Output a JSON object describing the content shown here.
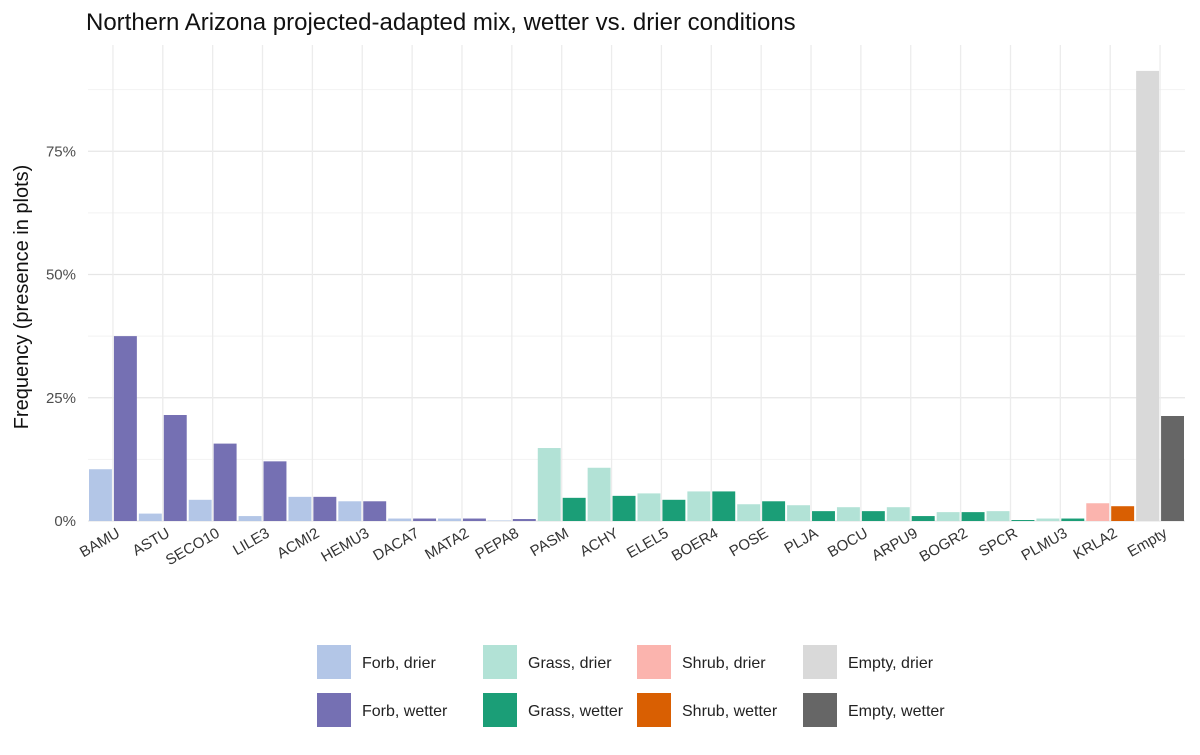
{
  "chart_data": {
    "type": "bar",
    "title": "Northern Arizona projected-adapted mix, wetter vs. drier conditions",
    "xlabel": "",
    "ylabel": "Frequency (presence in plots)",
    "ylim": [
      0,
      0.93
    ],
    "yticks": [
      0,
      0.25,
      0.5,
      0.75
    ],
    "ytick_labels": [
      "0%",
      "25%",
      "50%",
      "75%"
    ],
    "grid": true,
    "legend_position": "bottom",
    "categories": [
      "BAMU",
      "ASTU",
      "SECO10",
      "LILE3",
      "ACMI2",
      "HEMU3",
      "DACA7",
      "MATA2",
      "PEPA8",
      "PASM",
      "ACHY",
      "ELEL5",
      "BOER4",
      "POSE",
      "PLJA",
      "BOCU",
      "ARPU9",
      "BOGR2",
      "SPCR",
      "PLMU3",
      "KRLA2",
      "Empty"
    ],
    "bars": [
      {
        "category": "BAMU",
        "drier": 0.105,
        "wetter": 0.375,
        "group": "Forb"
      },
      {
        "category": "ASTU",
        "drier": 0.015,
        "wetter": 0.215,
        "group": "Forb"
      },
      {
        "category": "SECO10",
        "drier": 0.043,
        "wetter": 0.157,
        "group": "Forb"
      },
      {
        "category": "LILE3",
        "drier": 0.01,
        "wetter": 0.121,
        "group": "Forb"
      },
      {
        "category": "ACMI2",
        "drier": 0.049,
        "wetter": 0.049,
        "group": "Forb"
      },
      {
        "category": "HEMU3",
        "drier": 0.04,
        "wetter": 0.04,
        "group": "Forb"
      },
      {
        "category": "DACA7",
        "drier": 0.005,
        "wetter": 0.005,
        "group": "Forb"
      },
      {
        "category": "MATA2",
        "drier": 0.005,
        "wetter": 0.005,
        "group": "Forb"
      },
      {
        "category": "PEPA8",
        "drier": 0.001,
        "wetter": 0.004,
        "group": "Forb"
      },
      {
        "category": "PASM",
        "drier": 0.148,
        "wetter": 0.047,
        "group": "Grass"
      },
      {
        "category": "ACHY",
        "drier": 0.108,
        "wetter": 0.051,
        "group": "Grass"
      },
      {
        "category": "ELEL5",
        "drier": 0.056,
        "wetter": 0.043,
        "group": "Grass"
      },
      {
        "category": "BOER4",
        "drier": 0.06,
        "wetter": 0.06,
        "group": "Grass"
      },
      {
        "category": "POSE",
        "drier": 0.034,
        "wetter": 0.04,
        "group": "Grass"
      },
      {
        "category": "PLJA",
        "drier": 0.032,
        "wetter": 0.02,
        "group": "Grass"
      },
      {
        "category": "BOCU",
        "drier": 0.028,
        "wetter": 0.02,
        "group": "Grass"
      },
      {
        "category": "ARPU9",
        "drier": 0.028,
        "wetter": 0.01,
        "group": "Grass"
      },
      {
        "category": "BOGR2",
        "drier": 0.018,
        "wetter": 0.018,
        "group": "Grass"
      },
      {
        "category": "SPCR",
        "drier": 0.02,
        "wetter": 0.002,
        "group": "Grass"
      },
      {
        "category": "PLMU3",
        "drier": 0.005,
        "wetter": 0.005,
        "group": "Grass"
      },
      {
        "category": "KRLA2",
        "drier": 0.036,
        "wetter": 0.03,
        "group": "Shrub"
      },
      {
        "category": "Empty",
        "drier": 0.913,
        "wetter": 0.213,
        "group": "Empty"
      }
    ],
    "colors": {
      "Forb": {
        "drier": "#b3c6e7",
        "wetter": "#7570b3"
      },
      "Grass": {
        "drier": "#b2e2d6",
        "wetter": "#1b9e77"
      },
      "Shrub": {
        "drier": "#fbb4ae",
        "wetter": "#d95f02"
      },
      "Empty": {
        "drier": "#d9d9d9",
        "wetter": "#666666"
      }
    },
    "legend": [
      {
        "label": "Forb, drier",
        "color": "#b3c6e7"
      },
      {
        "label": "Grass, drier",
        "color": "#b2e2d6"
      },
      {
        "label": "Shrub, drier",
        "color": "#fbb4ae"
      },
      {
        "label": "Empty, drier",
        "color": "#d9d9d9"
      },
      {
        "label": "Forb, wetter",
        "color": "#7570b3"
      },
      {
        "label": "Grass, wetter",
        "color": "#1b9e77"
      },
      {
        "label": "Shrub, wetter",
        "color": "#d95f02"
      },
      {
        "label": "Empty, wetter",
        "color": "#666666"
      }
    ]
  }
}
